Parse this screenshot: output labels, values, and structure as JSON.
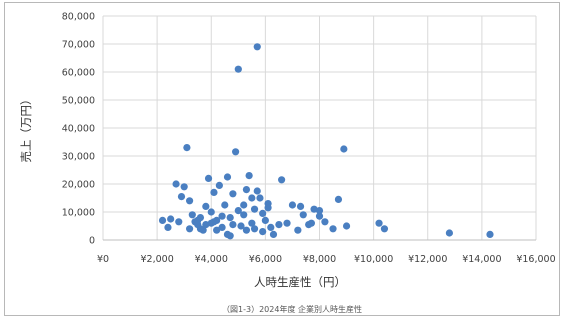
{
  "chart_data": {
    "type": "scatter",
    "title": "",
    "xlabel": "人時生産性（円）",
    "ylabel": "売上（万円）",
    "xlim": [
      0,
      16000
    ],
    "ylim": [
      0,
      80000
    ],
    "x_ticks": [
      "¥0",
      "¥2,000",
      "¥4,000",
      "¥6,000",
      "¥8,000",
      "¥10,000",
      "¥12,000",
      "¥14,000",
      "¥16,000"
    ],
    "y_ticks": [
      "0",
      "10,000",
      "20,000",
      "30,000",
      "40,000",
      "50,000",
      "60,000",
      "70,000",
      "80,000"
    ],
    "grid": true,
    "legend": "none",
    "marker_color": "#4a7fc1",
    "caption": "（図1-3）2024年度 企業別人時生産性",
    "series": [
      {
        "points": [
          [
            2200,
            7000
          ],
          [
            2500,
            7500
          ],
          [
            2800,
            6500
          ],
          [
            2700,
            20000
          ],
          [
            2900,
            15500
          ],
          [
            3100,
            33000
          ],
          [
            3000,
            19000
          ],
          [
            3200,
            14000
          ],
          [
            3300,
            9000
          ],
          [
            3400,
            6500
          ],
          [
            3500,
            5500
          ],
          [
            3600,
            8000
          ],
          [
            3700,
            3500
          ],
          [
            3800,
            12000
          ],
          [
            3900,
            22000
          ],
          [
            4000,
            10000
          ],
          [
            4100,
            17000
          ],
          [
            4200,
            7000
          ],
          [
            4300,
            19500
          ],
          [
            4400,
            4500
          ],
          [
            4500,
            12500
          ],
          [
            4600,
            22500
          ],
          [
            4700,
            8000
          ],
          [
            4800,
            16500
          ],
          [
            4900,
            31500
          ],
          [
            5000,
            61000
          ],
          [
            5100,
            5000
          ],
          [
            5200,
            9000
          ],
          [
            5300,
            18000
          ],
          [
            5400,
            23000
          ],
          [
            5500,
            6000
          ],
          [
            5600,
            11000
          ],
          [
            5700,
            69000
          ],
          [
            5800,
            15000
          ],
          [
            5900,
            3000
          ],
          [
            6000,
            7000
          ],
          [
            6100,
            13000
          ],
          [
            6200,
            4500
          ],
          [
            6300,
            2000
          ],
          [
            6600,
            21500
          ],
          [
            6800,
            6000
          ],
          [
            7000,
            12500
          ],
          [
            7200,
            3500
          ],
          [
            7400,
            9000
          ],
          [
            7600,
            5500
          ],
          [
            7800,
            11000
          ],
          [
            8000,
            8500
          ],
          [
            8200,
            6500
          ],
          [
            8500,
            4000
          ],
          [
            8700,
            14500
          ],
          [
            8900,
            32500
          ],
          [
            9000,
            5000
          ],
          [
            10200,
            6000
          ],
          [
            10400,
            4000
          ],
          [
            12800,
            2500
          ],
          [
            14300,
            2000
          ],
          [
            2400,
            4500
          ],
          [
            3200,
            4000
          ],
          [
            3500,
            7000
          ],
          [
            3800,
            5500
          ],
          [
            4000,
            6000
          ],
          [
            4200,
            3500
          ],
          [
            4400,
            8500
          ],
          [
            4600,
            2000
          ],
          [
            4800,
            5500
          ],
          [
            5000,
            10500
          ],
          [
            5300,
            3500
          ],
          [
            5500,
            15000
          ],
          [
            5600,
            4000
          ],
          [
            5700,
            17500
          ],
          [
            5900,
            9500
          ],
          [
            6100,
            11500
          ],
          [
            3600,
            4000
          ],
          [
            4100,
            6500
          ],
          [
            4700,
            1500
          ],
          [
            5200,
            12500
          ],
          [
            7300,
            12000
          ],
          [
            8000,
            10500
          ],
          [
            6500,
            5500
          ],
          [
            7700,
            6000
          ]
        ]
      }
    ]
  }
}
